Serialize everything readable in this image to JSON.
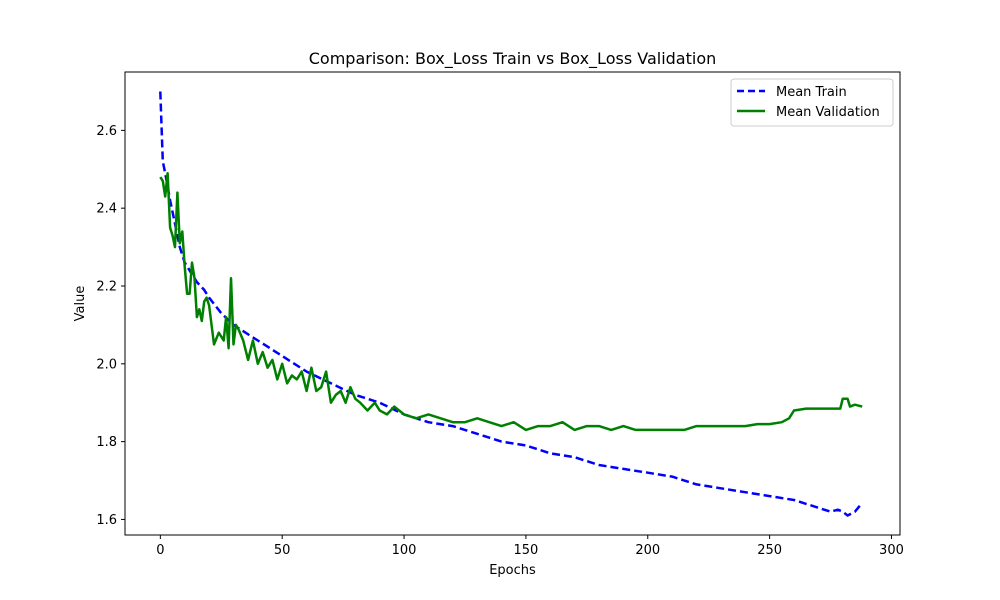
{
  "chart_data": {
    "type": "line",
    "title": "Comparison: Box_Loss Train vs Box_Loss Validation",
    "xlabel": "Epochs",
    "ylabel": "Value",
    "xlim": [
      -14.5,
      303.5
    ],
    "ylim": [
      1.56,
      2.75
    ],
    "xticks": [
      0,
      50,
      100,
      150,
      200,
      250,
      300
    ],
    "yticks": [
      1.6,
      1.8,
      2.0,
      2.2,
      2.4,
      2.6
    ],
    "ytick_labels": [
      "1.6",
      "1.8",
      "2.0",
      "2.2",
      "2.4",
      "2.6"
    ],
    "grid": false,
    "legend_position": "top-right",
    "series": [
      {
        "name": "Mean Train",
        "color": "#0000ff",
        "style": "dashed",
        "x": [
          0,
          1,
          2,
          4,
          6,
          8,
          10,
          12,
          15,
          18,
          20,
          25,
          30,
          35,
          40,
          45,
          50,
          55,
          60,
          70,
          80,
          90,
          100,
          110,
          120,
          130,
          140,
          150,
          160,
          170,
          180,
          190,
          200,
          210,
          220,
          230,
          240,
          250,
          260,
          265,
          270,
          275,
          278,
          280,
          282,
          285,
          287,
          288
        ],
        "y": [
          2.7,
          2.52,
          2.49,
          2.42,
          2.36,
          2.3,
          2.26,
          2.24,
          2.21,
          2.19,
          2.17,
          2.13,
          2.1,
          2.08,
          2.06,
          2.04,
          2.02,
          2.0,
          1.98,
          1.95,
          1.92,
          1.9,
          1.87,
          1.85,
          1.84,
          1.82,
          1.8,
          1.79,
          1.77,
          1.76,
          1.74,
          1.73,
          1.72,
          1.71,
          1.69,
          1.68,
          1.67,
          1.66,
          1.65,
          1.64,
          1.63,
          1.62,
          1.625,
          1.62,
          1.61,
          1.62,
          1.635,
          1.63
        ]
      },
      {
        "name": "Mean Validation",
        "color": "#008000",
        "style": "solid",
        "x": [
          0,
          1,
          2,
          3,
          4,
          5,
          6,
          7,
          8,
          9,
          10,
          11,
          12,
          13,
          14,
          15,
          16,
          17,
          18,
          19,
          20,
          22,
          24,
          26,
          27,
          28,
          29,
          30,
          31,
          32,
          34,
          36,
          38,
          40,
          42,
          44,
          46,
          48,
          50,
          52,
          54,
          56,
          58,
          60,
          62,
          64,
          66,
          68,
          70,
          72,
          74,
          76,
          78,
          80,
          82,
          85,
          88,
          90,
          93,
          96,
          100,
          105,
          110,
          115,
          120,
          125,
          130,
          135,
          140,
          145,
          150,
          155,
          160,
          165,
          170,
          175,
          180,
          185,
          190,
          195,
          200,
          205,
          210,
          215,
          220,
          225,
          230,
          235,
          240,
          245,
          250,
          255,
          258,
          260,
          265,
          270,
          275,
          279,
          280,
          282,
          283,
          285,
          288
        ],
        "y": [
          2.48,
          2.47,
          2.43,
          2.49,
          2.35,
          2.33,
          2.3,
          2.44,
          2.31,
          2.34,
          2.25,
          2.18,
          2.18,
          2.26,
          2.22,
          2.12,
          2.14,
          2.11,
          2.16,
          2.17,
          2.15,
          2.05,
          2.08,
          2.06,
          2.12,
          2.04,
          2.22,
          2.05,
          2.1,
          2.09,
          2.06,
          2.01,
          2.06,
          2.0,
          2.03,
          1.99,
          2.01,
          1.96,
          2.0,
          1.95,
          1.97,
          1.96,
          1.98,
          1.93,
          1.99,
          1.93,
          1.94,
          1.98,
          1.9,
          1.92,
          1.93,
          1.9,
          1.94,
          1.91,
          1.9,
          1.88,
          1.9,
          1.88,
          1.87,
          1.89,
          1.87,
          1.86,
          1.87,
          1.86,
          1.85,
          1.85,
          1.86,
          1.85,
          1.84,
          1.85,
          1.83,
          1.84,
          1.84,
          1.85,
          1.83,
          1.84,
          1.84,
          1.83,
          1.84,
          1.83,
          1.83,
          1.83,
          1.83,
          1.83,
          1.84,
          1.84,
          1.84,
          1.84,
          1.84,
          1.845,
          1.845,
          1.85,
          1.86,
          1.88,
          1.885,
          1.885,
          1.885,
          1.885,
          1.91,
          1.91,
          1.89,
          1.895,
          1.89
        ]
      }
    ]
  }
}
